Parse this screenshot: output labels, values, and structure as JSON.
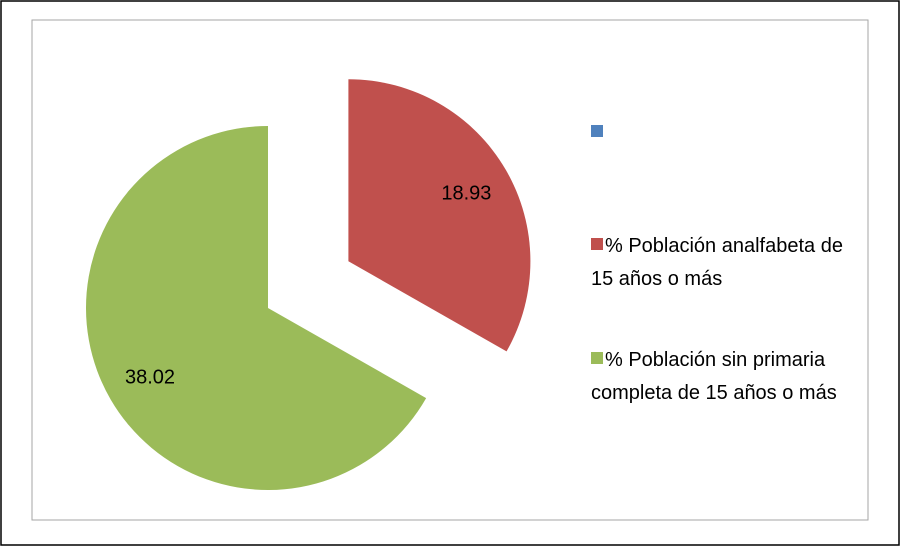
{
  "chart_data": {
    "type": "pie",
    "categories": [
      null,
      "% Población analfabeta de 15 años o más",
      "% Población sin primaria completa de 15 años o más"
    ],
    "values": [
      null,
      18.93,
      38.02
    ],
    "colors": [
      "#4f81bd",
      "#c0504d",
      "#9bbb59"
    ],
    "legend": "right"
  }
}
